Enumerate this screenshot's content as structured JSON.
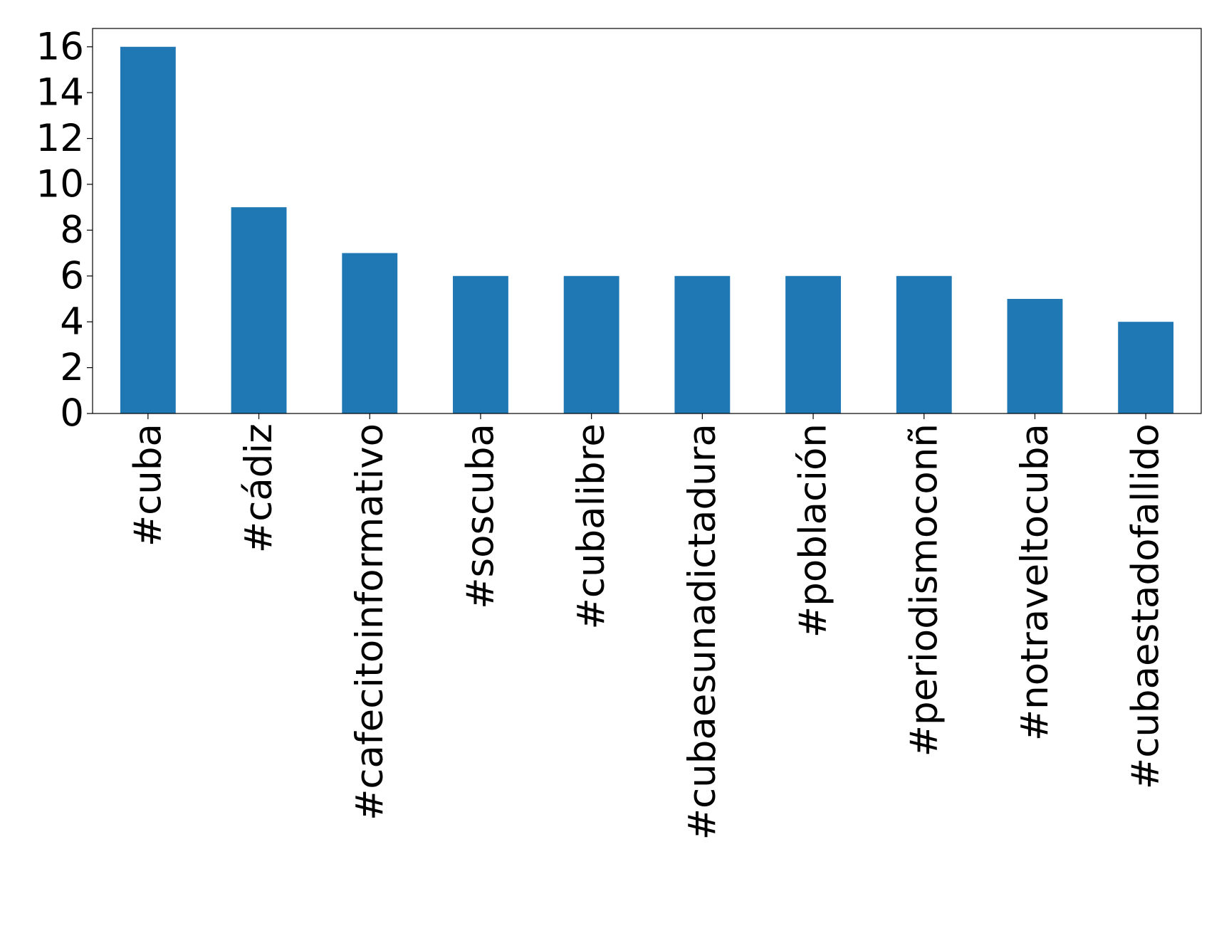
{
  "chart_data": {
    "type": "bar",
    "categories": [
      "#cuba",
      "#cádiz",
      "#cafecitoinformativo",
      "#soscuba",
      "#cubalibre",
      "#cubaesunadictadura",
      "#población",
      "#periodismoconñ",
      "#notraveltocuba",
      "#cubaestadofallido"
    ],
    "values": [
      16,
      9,
      7,
      6,
      6,
      6,
      6,
      6,
      5,
      4
    ],
    "color": "#1f77b4",
    "ylim": [
      0,
      16.8
    ],
    "yticks": [
      0,
      2,
      4,
      6,
      8,
      10,
      12,
      14,
      16
    ],
    "grid": false
  }
}
